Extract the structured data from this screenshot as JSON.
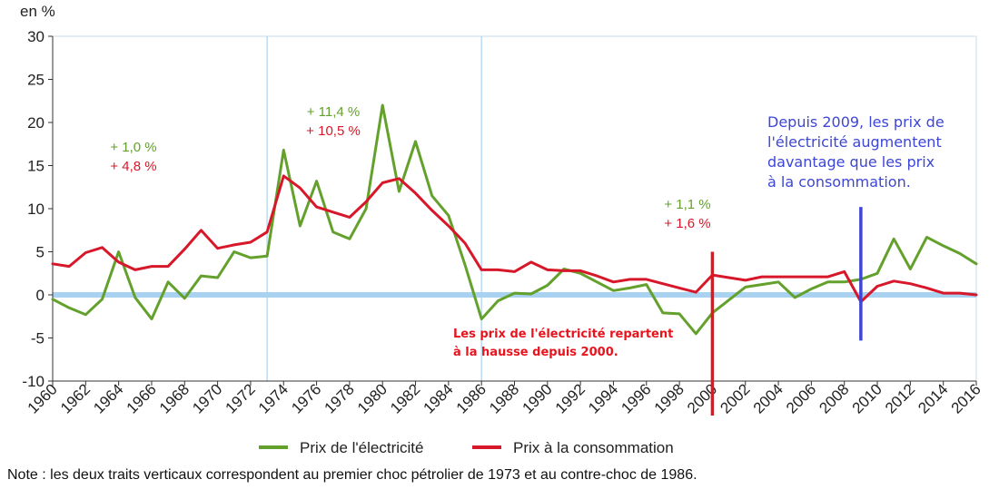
{
  "chart_data": {
    "type": "line",
    "ylabel": "en %",
    "ylim": [
      -10,
      30
    ],
    "y_ticks": [
      "30",
      "25",
      "20",
      "15",
      "10",
      "5",
      "0",
      "-5",
      "-10"
    ],
    "x_tick_labels": [
      "1960",
      "1962",
      "1964",
      "1966",
      "1968",
      "1970",
      "1972",
      "1974",
      "1976",
      "1978",
      "1980",
      "1982",
      "1984",
      "1986",
      "1988",
      "1990",
      "1992",
      "1994",
      "1996",
      "1998",
      "2000",
      "2002",
      "2004",
      "2006",
      "2008",
      "2010",
      "2012",
      "2014",
      "2016"
    ],
    "x": [
      1960,
      1961,
      1962,
      1963,
      1964,
      1965,
      1966,
      1967,
      1968,
      1969,
      1970,
      1971,
      1972,
      1973,
      1974,
      1975,
      1976,
      1977,
      1978,
      1979,
      1980,
      1981,
      1982,
      1983,
      1984,
      1985,
      1986,
      1987,
      1988,
      1989,
      1990,
      1991,
      1992,
      1993,
      1994,
      1995,
      1996,
      1997,
      1998,
      1999,
      2000,
      2001,
      2002,
      2003,
      2004,
      2005,
      2006,
      2007,
      2008,
      2009,
      2010,
      2011,
      2012,
      2013,
      2014,
      2015,
      2016
    ],
    "series": [
      {
        "name": "Prix de l'électricité",
        "color": "#63a12c",
        "values": [
          -0.5,
          -1.5,
          -2.3,
          -0.5,
          5.0,
          -0.3,
          -2.8,
          1.5,
          -0.4,
          2.2,
          2.0,
          5.0,
          4.3,
          4.5,
          16.8,
          8.0,
          13.2,
          7.3,
          6.5,
          10.0,
          22.0,
          12.0,
          17.8,
          11.5,
          9.2,
          3.5,
          -2.8,
          -0.7,
          0.2,
          0.1,
          1.1,
          3.0,
          2.5,
          1.5,
          0.5,
          0.8,
          1.2,
          -2.1,
          -2.2,
          -4.5,
          -2.1,
          -0.6,
          0.9,
          1.2,
          1.5,
          -0.3,
          0.7,
          1.5,
          1.5,
          1.8,
          2.5,
          6.5,
          3.0,
          6.7,
          5.7,
          4.8,
          3.6
        ]
      },
      {
        "name": "Prix à la consommation",
        "color": "#d7182a",
        "values": [
          3.6,
          3.3,
          4.9,
          5.5,
          3.8,
          2.9,
          3.3,
          3.3,
          5.3,
          7.5,
          5.4,
          5.8,
          6.1,
          7.3,
          13.8,
          12.4,
          10.2,
          9.6,
          9.0,
          10.8,
          13.0,
          13.5,
          11.8,
          9.8,
          8.0,
          6.0,
          2.9,
          2.9,
          2.7,
          3.8,
          2.9,
          2.8,
          2.8,
          2.2,
          1.5,
          1.8,
          1.8,
          1.3,
          0.8,
          0.3,
          2.3,
          2.0,
          1.7,
          2.1,
          2.1,
          2.1,
          2.1,
          2.1,
          2.7,
          -0.8,
          1.0,
          1.6,
          1.3,
          0.8,
          0.2,
          0.2,
          0.0
        ]
      }
    ],
    "vertical_gridlines_years": [
      1973,
      1986
    ],
    "marker_lines": [
      {
        "year": 2000,
        "color": "#e8141d",
        "from": -14,
        "to": 5
      },
      {
        "year": 2009,
        "color": "#3d46d6",
        "from": -5.3,
        "to": 10.2
      }
    ],
    "annotations": [
      {
        "lines": [
          "+ 1,0 %",
          "+ 4,8 %"
        ],
        "colors": [
          "#63a12c",
          "#d7182a"
        ]
      },
      {
        "lines": [
          "+ 11,4 %",
          "+ 10,5 %"
        ],
        "colors": [
          "#63a12c",
          "#d7182a"
        ]
      },
      {
        "lines": [
          "+ 1,1 %",
          "+ 1,6 %"
        ],
        "colors": [
          "#63a12c",
          "#d7182a"
        ]
      }
    ],
    "text_notes": {
      "blue": [
        "Depuis 2009, les prix de",
        "l'électricité augmentent",
        "davantage que les prix",
        "à la consommation."
      ],
      "red": [
        "Les prix de l'électricité repartent",
        "à la hausse depuis 2000."
      ]
    },
    "legend_position": "bottom"
  },
  "note": "Note : les deux traits verticaux correspondent au premier choc pétrolier de 1973 et au contre-choc de 1986."
}
